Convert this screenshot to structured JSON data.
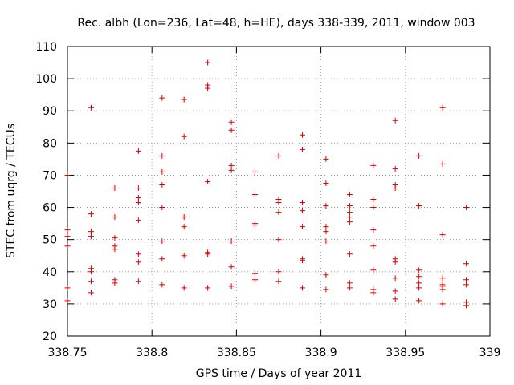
{
  "chart_data": {
    "type": "scatter",
    "title": "Rec. albh (Lon=236, Lat=48, h=HE), days 338-339, 2011, window 003",
    "xlabel": "GPS time / Days of year 2011",
    "ylabel": "STEC from uqrg / TECUs",
    "xlim": [
      338.75,
      339.0
    ],
    "ylim": [
      20,
      110
    ],
    "xticks": [
      338.75,
      338.8,
      338.85,
      338.9,
      338.95,
      339
    ],
    "xtick_labels": [
      "338.75",
      "338.8",
      "338.85",
      "338.9",
      "338.95",
      "339"
    ],
    "yticks": [
      20,
      30,
      40,
      50,
      60,
      70,
      80,
      90,
      100,
      110
    ],
    "ytick_labels": [
      "20",
      "30",
      "40",
      "50",
      "60",
      "70",
      "80",
      "90",
      "100",
      "110"
    ],
    "grid": true,
    "marker": "plus",
    "color": "#dd0000",
    "series": [
      {
        "name": "STEC",
        "points": [
          [
            338.75,
            31
          ],
          [
            338.75,
            35
          ],
          [
            338.75,
            48
          ],
          [
            338.75,
            51
          ],
          [
            338.75,
            53
          ],
          [
            338.75,
            70
          ],
          [
            338.764,
            33.5
          ],
          [
            338.764,
            37
          ],
          [
            338.764,
            40
          ],
          [
            338.764,
            41
          ],
          [
            338.764,
            51
          ],
          [
            338.764,
            52.5
          ],
          [
            338.764,
            58
          ],
          [
            338.764,
            91
          ],
          [
            338.778,
            36.5
          ],
          [
            338.778,
            37.5
          ],
          [
            338.778,
            47
          ],
          [
            338.778,
            48
          ],
          [
            338.778,
            50.5
          ],
          [
            338.778,
            57
          ],
          [
            338.778,
            66
          ],
          [
            338.792,
            37
          ],
          [
            338.792,
            43
          ],
          [
            338.792,
            45.5
          ],
          [
            338.792,
            56
          ],
          [
            338.792,
            61.5
          ],
          [
            338.792,
            63
          ],
          [
            338.792,
            66
          ],
          [
            338.792,
            77.5
          ],
          [
            338.806,
            36
          ],
          [
            338.806,
            44
          ],
          [
            338.806,
            49.5
          ],
          [
            338.806,
            60
          ],
          [
            338.806,
            67
          ],
          [
            338.806,
            71
          ],
          [
            338.806,
            76
          ],
          [
            338.806,
            94
          ],
          [
            338.819,
            35
          ],
          [
            338.819,
            45
          ],
          [
            338.819,
            54
          ],
          [
            338.819,
            57
          ],
          [
            338.819,
            82
          ],
          [
            338.819,
            93.5
          ],
          [
            338.833,
            35
          ],
          [
            338.833,
            45.5
          ],
          [
            338.833,
            46
          ],
          [
            338.833,
            68
          ],
          [
            338.833,
            97
          ],
          [
            338.833,
            98
          ],
          [
            338.833,
            105
          ],
          [
            338.847,
            35.5
          ],
          [
            338.847,
            41.5
          ],
          [
            338.847,
            49.5
          ],
          [
            338.847,
            71.5
          ],
          [
            338.847,
            73
          ],
          [
            338.847,
            84
          ],
          [
            338.847,
            86.5
          ],
          [
            338.861,
            37.5
          ],
          [
            338.861,
            39.5
          ],
          [
            338.861,
            54.5
          ],
          [
            338.861,
            55
          ],
          [
            338.861,
            64
          ],
          [
            338.861,
            71
          ],
          [
            338.875,
            37
          ],
          [
            338.875,
            40
          ],
          [
            338.875,
            50
          ],
          [
            338.875,
            58.5
          ],
          [
            338.875,
            61.5
          ],
          [
            338.875,
            62.5
          ],
          [
            338.875,
            76
          ],
          [
            338.889,
            35
          ],
          [
            338.889,
            43.5
          ],
          [
            338.889,
            44
          ],
          [
            338.889,
            54
          ],
          [
            338.889,
            59
          ],
          [
            338.889,
            61.5
          ],
          [
            338.889,
            78
          ],
          [
            338.889,
            82.5
          ],
          [
            338.903,
            34.5
          ],
          [
            338.903,
            39
          ],
          [
            338.903,
            49.5
          ],
          [
            338.903,
            52.5
          ],
          [
            338.903,
            54
          ],
          [
            338.903,
            60.5
          ],
          [
            338.903,
            67.5
          ],
          [
            338.903,
            75
          ],
          [
            338.917,
            35
          ],
          [
            338.917,
            36.5
          ],
          [
            338.917,
            45.5
          ],
          [
            338.917,
            55.5
          ],
          [
            338.917,
            57
          ],
          [
            338.917,
            58.5
          ],
          [
            338.917,
            60.5
          ],
          [
            338.917,
            64
          ],
          [
            338.931,
            33.5
          ],
          [
            338.931,
            34.5
          ],
          [
            338.931,
            40.5
          ],
          [
            338.931,
            48
          ],
          [
            338.931,
            53
          ],
          [
            338.931,
            60
          ],
          [
            338.931,
            62.5
          ],
          [
            338.931,
            73
          ],
          [
            338.944,
            31.5
          ],
          [
            338.944,
            34
          ],
          [
            338.944,
            38
          ],
          [
            338.944,
            43
          ],
          [
            338.944,
            44
          ],
          [
            338.944,
            66
          ],
          [
            338.944,
            67
          ],
          [
            338.944,
            72
          ],
          [
            338.944,
            87
          ],
          [
            338.958,
            31
          ],
          [
            338.958,
            35
          ],
          [
            338.958,
            36.5
          ],
          [
            338.958,
            38.5
          ],
          [
            338.958,
            40.5
          ],
          [
            338.958,
            60.5
          ],
          [
            338.958,
            76
          ],
          [
            338.972,
            30
          ],
          [
            338.972,
            34.5
          ],
          [
            338.972,
            35.5
          ],
          [
            338.972,
            36
          ],
          [
            338.972,
            38
          ],
          [
            338.972,
            51.5
          ],
          [
            338.972,
            73.5
          ],
          [
            338.972,
            91
          ],
          [
            338.986,
            29.5
          ],
          [
            338.986,
            30.5
          ],
          [
            338.986,
            36
          ],
          [
            338.986,
            37.5
          ],
          [
            338.986,
            42.5
          ],
          [
            338.986,
            60
          ]
        ]
      }
    ]
  }
}
